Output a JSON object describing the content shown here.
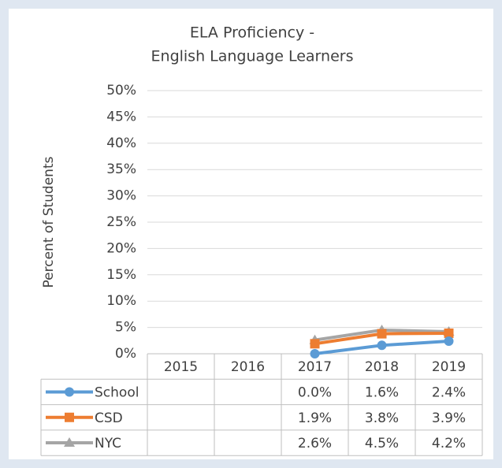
{
  "chart_data": {
    "type": "line",
    "title": [
      "ELA Proficiency -",
      "English Language Learners"
    ],
    "y_label": "Percent of Students",
    "categories": [
      "2015",
      "2016",
      "2017",
      "2018",
      "2019"
    ],
    "series": [
      {
        "name": "School",
        "color": "#5b9bd5",
        "marker": "circle",
        "values": [
          null,
          null,
          0.0,
          1.6,
          2.4
        ],
        "value_labels": [
          null,
          null,
          "0.0%",
          "1.6%",
          "2.4%"
        ]
      },
      {
        "name": "CSD",
        "color": "#ed7d31",
        "marker": "square",
        "values": [
          null,
          null,
          1.9,
          3.8,
          3.9
        ],
        "value_labels": [
          null,
          null,
          "1.9%",
          "3.8%",
          "3.9%"
        ]
      },
      {
        "name": "NYC",
        "color": "#a5a5a5",
        "marker": "triangle",
        "values": [
          null,
          null,
          2.6,
          4.5,
          4.2
        ],
        "value_labels": [
          null,
          null,
          "2.6%",
          "4.5%",
          "4.2%"
        ]
      }
    ],
    "ylim": [
      0,
      50
    ],
    "yticks": [
      {
        "value": 0,
        "label": "0%"
      },
      {
        "value": 5,
        "label": "5%"
      },
      {
        "value": 10,
        "label": "10%"
      },
      {
        "value": 15,
        "label": "15%"
      },
      {
        "value": 20,
        "label": "20%"
      },
      {
        "value": 25,
        "label": "25%"
      },
      {
        "value": 30,
        "label": "30%"
      },
      {
        "value": 35,
        "label": "35%"
      },
      {
        "value": 40,
        "label": "40%"
      },
      {
        "value": 45,
        "label": "45%"
      },
      {
        "value": 50,
        "label": "50%"
      }
    ],
    "grid": true,
    "data_table": true
  }
}
